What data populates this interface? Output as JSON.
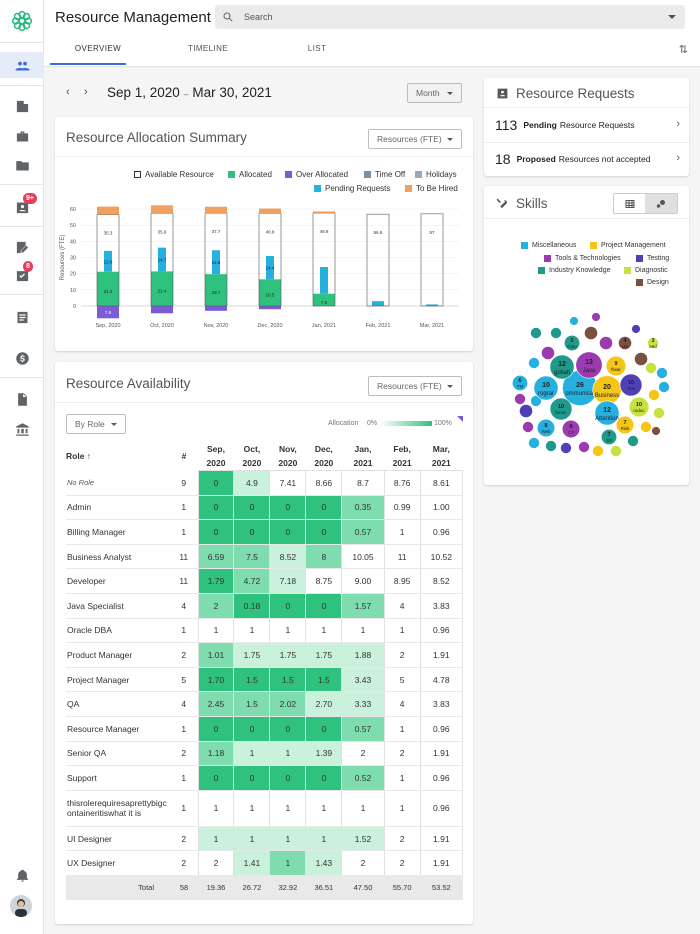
{
  "app": {
    "title": "Resource Management",
    "search_placeholder": "Search"
  },
  "tabs": [
    "OVERVIEW",
    "TIMELINE",
    "LIST"
  ],
  "rail_badges": {
    "b1": "9+",
    "b2": "8"
  },
  "date_range": {
    "start": "Sep 1, 2020",
    "sep": "–",
    "end": "Mar 30, 2021",
    "granularity": "Month"
  },
  "allocation_summary": {
    "title": "Resource Allocation Summary",
    "unit_select": "Resources (FTE)"
  },
  "legend": [
    "Available Resource",
    "Allocated",
    "Over Allocated",
    "Time Off",
    "Holidays",
    "Pending Requests",
    "To Be Hired"
  ],
  "colors": {
    "available": "#ffffff",
    "allocated": "#2ec27e",
    "over": "#7a5cd8",
    "timeoff": "#7a8fa6",
    "holidays": "#9aa8b8",
    "pending": "#26b0e0",
    "hired": "#f0a060",
    "accent": "#3f6ad8"
  },
  "chart_data": {
    "type": "bar",
    "ylabel": "Resources (FTE)",
    "ylim": [
      0,
      60
    ],
    "yticks": [
      "0",
      "10",
      "20",
      "30",
      "40",
      "50",
      "60"
    ],
    "categories": [
      "Sep, 2020",
      "Oct, 2020",
      "Nov, 2020",
      "Dec, 2020",
      "Jan, 2021",
      "Feb, 2021",
      "Mar, 2021"
    ],
    "series": [
      {
        "name": "Allocated",
        "values": [
          21.2,
          21.4,
          19.7,
          16.5,
          7.6,
          0,
          0
        ]
      },
      {
        "name": "Over Allocated",
        "values": [
          7.6,
          4.5,
          3,
          2,
          0,
          0,
          0
        ]
      },
      {
        "name": "Pending Requests",
        "values": [
          12.9,
          14.7,
          14.8,
          14.4,
          16.5,
          3,
          1
        ]
      },
      {
        "name": "Available Resource",
        "values": [
          35.3,
          35.9,
          37.7,
          40.8,
          49.9,
          56.8,
          57
        ]
      },
      {
        "name": "To Be Hired",
        "values": [
          5,
          5,
          4,
          3,
          1,
          0,
          0
        ]
      }
    ],
    "labels": {
      "allocated": [
        "21.2",
        "21.4",
        "19.7",
        "16.5",
        "7.6",
        "",
        ""
      ],
      "over": [
        "7.6",
        "",
        "",
        "",
        "",
        "",
        ""
      ],
      "pending": [
        "12.9",
        "14.7",
        "14.8",
        "14.4",
        "",
        "",
        ""
      ],
      "available": [
        "35.3",
        "35.9",
        "37.7",
        "40.8",
        "49.9",
        "56.8",
        "57"
      ]
    }
  },
  "availability": {
    "title": "Resource Availability",
    "unit_select": "Resources (FTE)",
    "group_select": "By Role",
    "allocation_label": "Allocation",
    "scale_min": "0%",
    "scale_max": "100%",
    "columns": {
      "role": "Role",
      "count": "#",
      "months": [
        [
          "Sep,",
          "2020"
        ],
        [
          "Oct,",
          "2020"
        ],
        [
          "Nov,",
          "2020"
        ],
        [
          "Dec,",
          "2020"
        ],
        [
          "Jan,",
          "2021"
        ],
        [
          "Feb,",
          "2021"
        ],
        [
          "Mar,",
          "2021"
        ]
      ]
    },
    "rows": [
      {
        "role": "No Role",
        "count": "9",
        "vals": [
          "0",
          "4.9",
          "7.41",
          "8.66",
          "8.7",
          "8.76",
          "8.61"
        ],
        "shade": [
          3,
          1,
          0,
          0,
          0,
          0,
          0
        ],
        "italic": true
      },
      {
        "role": "Admin",
        "count": "1",
        "vals": [
          "0",
          "0",
          "0",
          "0",
          "0.35",
          "0.99",
          "1.00"
        ],
        "shade": [
          3,
          3,
          3,
          3,
          2,
          0,
          0
        ]
      },
      {
        "role": "Billing Manager",
        "count": "1",
        "vals": [
          "0",
          "0",
          "0",
          "0",
          "0.57",
          "1",
          "0.96"
        ],
        "shade": [
          3,
          3,
          3,
          3,
          2,
          0,
          0
        ]
      },
      {
        "role": "Business Analyst",
        "count": "11",
        "vals": [
          "6.59",
          "7.5",
          "8.52",
          "8",
          "10.05",
          "11",
          "10.52"
        ],
        "shade": [
          2,
          2,
          1,
          2,
          0,
          0,
          0
        ]
      },
      {
        "role": "Developer",
        "count": "11",
        "vals": [
          "1.79",
          "4.72",
          "7.18",
          "8.75",
          "9.00",
          "8.95",
          "8.52"
        ],
        "shade": [
          3,
          2,
          1,
          0,
          0,
          0,
          0
        ]
      },
      {
        "role": "Java Specialist",
        "count": "4",
        "vals": [
          "2",
          "0.18",
          "0",
          "0",
          "1.57",
          "4",
          "3.83"
        ],
        "shade": [
          2,
          3,
          3,
          3,
          2,
          0,
          0
        ]
      },
      {
        "role": "Oracle DBA",
        "count": "1",
        "vals": [
          "1",
          "1",
          "1",
          "1",
          "1",
          "1",
          "0.96"
        ],
        "shade": [
          0,
          0,
          0,
          0,
          0,
          0,
          0
        ]
      },
      {
        "role": "Product Manager",
        "count": "2",
        "vals": [
          "1.01",
          "1.75",
          "1.75",
          "1.75",
          "1.88",
          "2",
          "1.91"
        ],
        "shade": [
          2,
          1,
          1,
          1,
          1,
          0,
          0
        ]
      },
      {
        "role": "Project Manager",
        "count": "5",
        "vals": [
          "1.70",
          "1.5",
          "1.5",
          "1.5",
          "3.43",
          "5",
          "4.78"
        ],
        "shade": [
          3,
          3,
          3,
          3,
          1,
          0,
          0
        ]
      },
      {
        "role": "QA",
        "count": "4",
        "vals": [
          "2.45",
          "1.5",
          "2.02",
          "2.70",
          "3.33",
          "4",
          "3.83"
        ],
        "shade": [
          2,
          2,
          2,
          1,
          1,
          0,
          0
        ]
      },
      {
        "role": "Resource Manager",
        "count": "1",
        "vals": [
          "0",
          "0",
          "0",
          "0",
          "0.57",
          "1",
          "0.96"
        ],
        "shade": [
          3,
          3,
          3,
          3,
          2,
          0,
          0
        ]
      },
      {
        "role": "Senior QA",
        "count": "2",
        "vals": [
          "1.18",
          "1",
          "1",
          "1.39",
          "2",
          "2",
          "1.91"
        ],
        "shade": [
          2,
          1,
          1,
          1,
          0,
          0,
          0
        ]
      },
      {
        "role": "Support",
        "count": "1",
        "vals": [
          "0",
          "0",
          "0",
          "0",
          "0.52",
          "1",
          "0.96"
        ],
        "shade": [
          3,
          3,
          3,
          3,
          2,
          0,
          0
        ]
      },
      {
        "role": "thisrolerequiresaprettybigcontaineritiswhat it is",
        "count": "1",
        "vals": [
          "1",
          "1",
          "1",
          "1",
          "1",
          "1",
          "0.96"
        ],
        "shade": [
          0,
          0,
          0,
          0,
          0,
          0,
          0
        ]
      },
      {
        "role": "UI Designer",
        "count": "2",
        "vals": [
          "1",
          "1",
          "1",
          "1",
          "1.52",
          "2",
          "1.91"
        ],
        "shade": [
          1,
          1,
          1,
          1,
          1,
          0,
          0
        ]
      },
      {
        "role": "UX Designer",
        "count": "2",
        "vals": [
          "2",
          "1.41",
          "1",
          "1.43",
          "2",
          "2",
          "1.91"
        ],
        "shade": [
          0,
          1,
          2,
          1,
          0,
          0,
          0
        ]
      }
    ],
    "total": {
      "label": "Total",
      "count": "58",
      "vals": [
        "19.36",
        "26.72",
        "32.92",
        "36.51",
        "47.50",
        "55.70",
        "53.52"
      ]
    }
  },
  "requests": {
    "title": "Resource Requests",
    "items": [
      {
        "count": "113",
        "bold": "Pending",
        "rest": "Resource Requests"
      },
      {
        "count": "18",
        "bold": "Proposed",
        "rest": "Resources not accepted"
      }
    ]
  },
  "skills": {
    "title": "Skills",
    "legend": [
      "Miscellaneous",
      "Project Management",
      "Tools & Technologies",
      "Testing",
      "Industry Knowledge",
      "Diagnostic",
      "Design"
    ],
    "bubbles": [
      {
        "n": "26",
        "t": "ommunicat"
      },
      {
        "n": "20",
        "t": "Business"
      },
      {
        "n": "13",
        "t": "Java"
      },
      {
        "n": "12",
        "t": "gotiati"
      },
      {
        "n": "12",
        "t": "Attention"
      },
      {
        "n": "10",
        "t": "rograr"
      },
      {
        "n": "10",
        "t": "Test"
      },
      {
        "n": "10",
        "t": "roduc"
      },
      {
        "n": "10",
        "t": "bmen"
      },
      {
        "n": "9",
        "t": "ftwar"
      },
      {
        "n": "8",
        "t": "Web"
      },
      {
        "n": "8",
        "t": "C#"
      },
      {
        "n": "7",
        "t": "Risk"
      },
      {
        "n": "7",
        "t": "SS"
      },
      {
        "n": "6",
        "t": "TM"
      },
      {
        "n": "5",
        "t": "Clou"
      },
      {
        "n": "4",
        "t": "UX"
      },
      {
        "n": "3",
        "t": "eed"
      }
    ]
  }
}
